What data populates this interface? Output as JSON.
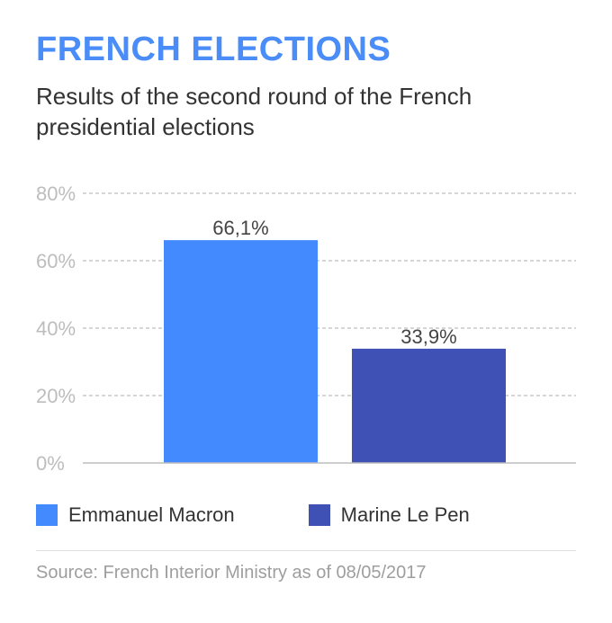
{
  "header": {
    "title": "FRENCH ELECTIONS",
    "subtitle": "Results of the second round of the French presidential elections"
  },
  "chart_data": {
    "type": "bar",
    "categories": [
      "Emmanuel Macron",
      "Marine Le Pen"
    ],
    "values": [
      66.1,
      33.9
    ],
    "data_labels": [
      "66,1%",
      "33,9%"
    ],
    "colors": [
      "#448aff",
      "#3f51b5"
    ],
    "ylim": [
      0,
      80
    ],
    "yticks": [
      0,
      20,
      40,
      60,
      80
    ],
    "ytick_labels": [
      "0%",
      "20%",
      "40%",
      "60%",
      "80%"
    ],
    "grid": true,
    "legend_position": "bottom"
  },
  "legend": {
    "items": [
      {
        "label": "Emmanuel Macron",
        "color": "#448aff"
      },
      {
        "label": "Marine Le Pen",
        "color": "#3f51b5"
      }
    ]
  },
  "footer": {
    "source": "Source: French Interior Ministry as of 08/05/2017"
  }
}
